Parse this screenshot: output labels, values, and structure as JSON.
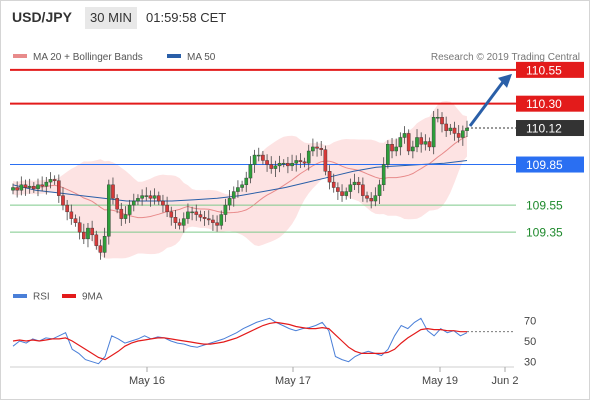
{
  "header": {
    "symbol": "USD/JPY",
    "interval": "30 MIN",
    "time": "01:59:58 CET"
  },
  "legend": {
    "ma20_bollinger": "MA 20 + Bollinger Bands",
    "ma50": "MA 50",
    "credit": "Research © 2019 Trading Central"
  },
  "colors": {
    "resistance": "#e31b1b",
    "support": "#1f8a2d",
    "pivot": "#2a6ff2",
    "last": "#333333",
    "ma20": "#e88b8b",
    "ma50": "#2a5fa8",
    "bollinger_fill": "#fde3e3",
    "candle_up": "#2e9e3a",
    "candle_down": "#d63a3a",
    "rsi": "#4a7fd8",
    "rsi_ma": "#e31b1b",
    "arrow": "#2a5fa8"
  },
  "chart_data": [
    {
      "type": "candlestick",
      "title": "USD/JPY 30 MIN",
      "ylim": [
        109.07,
        110.66
      ],
      "levels": [
        {
          "value": 110.55,
          "label": "110.55",
          "kind": "resistance"
        },
        {
          "value": 110.3,
          "label": "110.30",
          "kind": "resistance"
        },
        {
          "value": 110.12,
          "label": "110.12",
          "kind": "last"
        },
        {
          "value": 109.85,
          "label": "109.85",
          "kind": "pivot"
        },
        {
          "value": 109.55,
          "label": "109.55",
          "kind": "support"
        },
        {
          "value": 109.35,
          "label": "109.35",
          "kind": "support"
        }
      ],
      "x_ticks": [
        "May 16",
        "May 17",
        "May 19",
        "Jun 2"
      ],
      "closes": [
        109.68,
        109.66,
        109.7,
        109.68,
        109.69,
        109.67,
        109.7,
        109.69,
        109.72,
        109.74,
        109.73,
        109.62,
        109.55,
        109.5,
        109.45,
        109.42,
        109.35,
        109.3,
        109.38,
        109.33,
        109.25,
        109.2,
        109.32,
        109.7,
        109.6,
        109.52,
        109.45,
        109.48,
        109.55,
        109.58,
        109.6,
        109.62,
        109.62,
        109.6,
        109.62,
        109.58,
        109.55,
        109.5,
        109.46,
        109.42,
        109.4,
        109.45,
        109.5,
        109.5,
        109.48,
        109.46,
        109.45,
        109.44,
        109.42,
        109.4,
        109.48,
        109.55,
        109.6,
        109.65,
        109.68,
        109.7,
        109.75,
        109.85,
        109.92,
        109.92,
        109.88,
        109.85,
        109.82,
        109.84,
        109.86,
        109.86,
        109.84,
        109.86,
        109.88,
        109.87,
        109.86,
        109.95,
        109.98,
        109.97,
        109.96,
        109.8,
        109.72,
        109.68,
        109.65,
        109.62,
        109.65,
        109.7,
        109.72,
        109.7,
        109.62,
        109.6,
        109.58,
        109.62,
        109.7,
        109.85,
        110.0,
        109.95,
        109.98,
        110.05,
        110.08,
        109.95,
        109.98,
        110.05,
        110.0,
        110.02,
        109.98,
        110.2,
        110.2,
        110.15,
        110.1,
        110.12,
        110.08,
        110.05,
        110.1,
        110.12
      ],
      "ma50": [
        109.7,
        109.66,
        109.64,
        109.62,
        109.6,
        109.58,
        109.58,
        109.58,
        109.59,
        109.6,
        109.62,
        109.65,
        109.68,
        109.72,
        109.76,
        109.8,
        109.83,
        109.84,
        109.85,
        109.86,
        109.88
      ]
    },
    {
      "type": "line",
      "title": "RSI",
      "series": [
        {
          "name": "RSI",
          "values": [
            45,
            50,
            48,
            52,
            50,
            53,
            52,
            55,
            58,
            42,
            38,
            32,
            30,
            28,
            35,
            55,
            52,
            48,
            50,
            52,
            55,
            52,
            54,
            53,
            50,
            48,
            47,
            45,
            44,
            46,
            48,
            50,
            52,
            55,
            58,
            62,
            65,
            68,
            70,
            72,
            68,
            65,
            62,
            60,
            62,
            63,
            65,
            68,
            60,
            35,
            32,
            30,
            35,
            38,
            40,
            38,
            36,
            42,
            55,
            65,
            62,
            68,
            72,
            60,
            55,
            62,
            58,
            60,
            55,
            58
          ]
        },
        {
          "name": "9MA",
          "values": [
            50,
            51,
            50,
            51,
            50,
            51,
            52,
            52,
            53,
            50,
            46,
            42,
            38,
            34,
            32,
            36,
            40,
            45,
            48,
            50,
            51,
            52,
            53,
            53,
            52,
            51,
            50,
            49,
            48,
            47,
            47,
            48,
            49,
            51,
            53,
            56,
            59,
            62,
            65,
            67,
            68,
            67,
            66,
            64,
            63,
            62,
            62,
            63,
            62,
            56,
            50,
            44,
            40,
            38,
            38,
            38,
            38,
            39,
            42,
            48,
            53,
            57,
            61,
            62,
            61,
            61,
            60,
            60,
            59,
            59
          ]
        }
      ],
      "ylim": [
        20,
        80
      ],
      "y_ticks": [
        70,
        50,
        30
      ],
      "x_ticks": [
        "May 16",
        "May 17",
        "May 19",
        "Jun 2"
      ]
    }
  ]
}
